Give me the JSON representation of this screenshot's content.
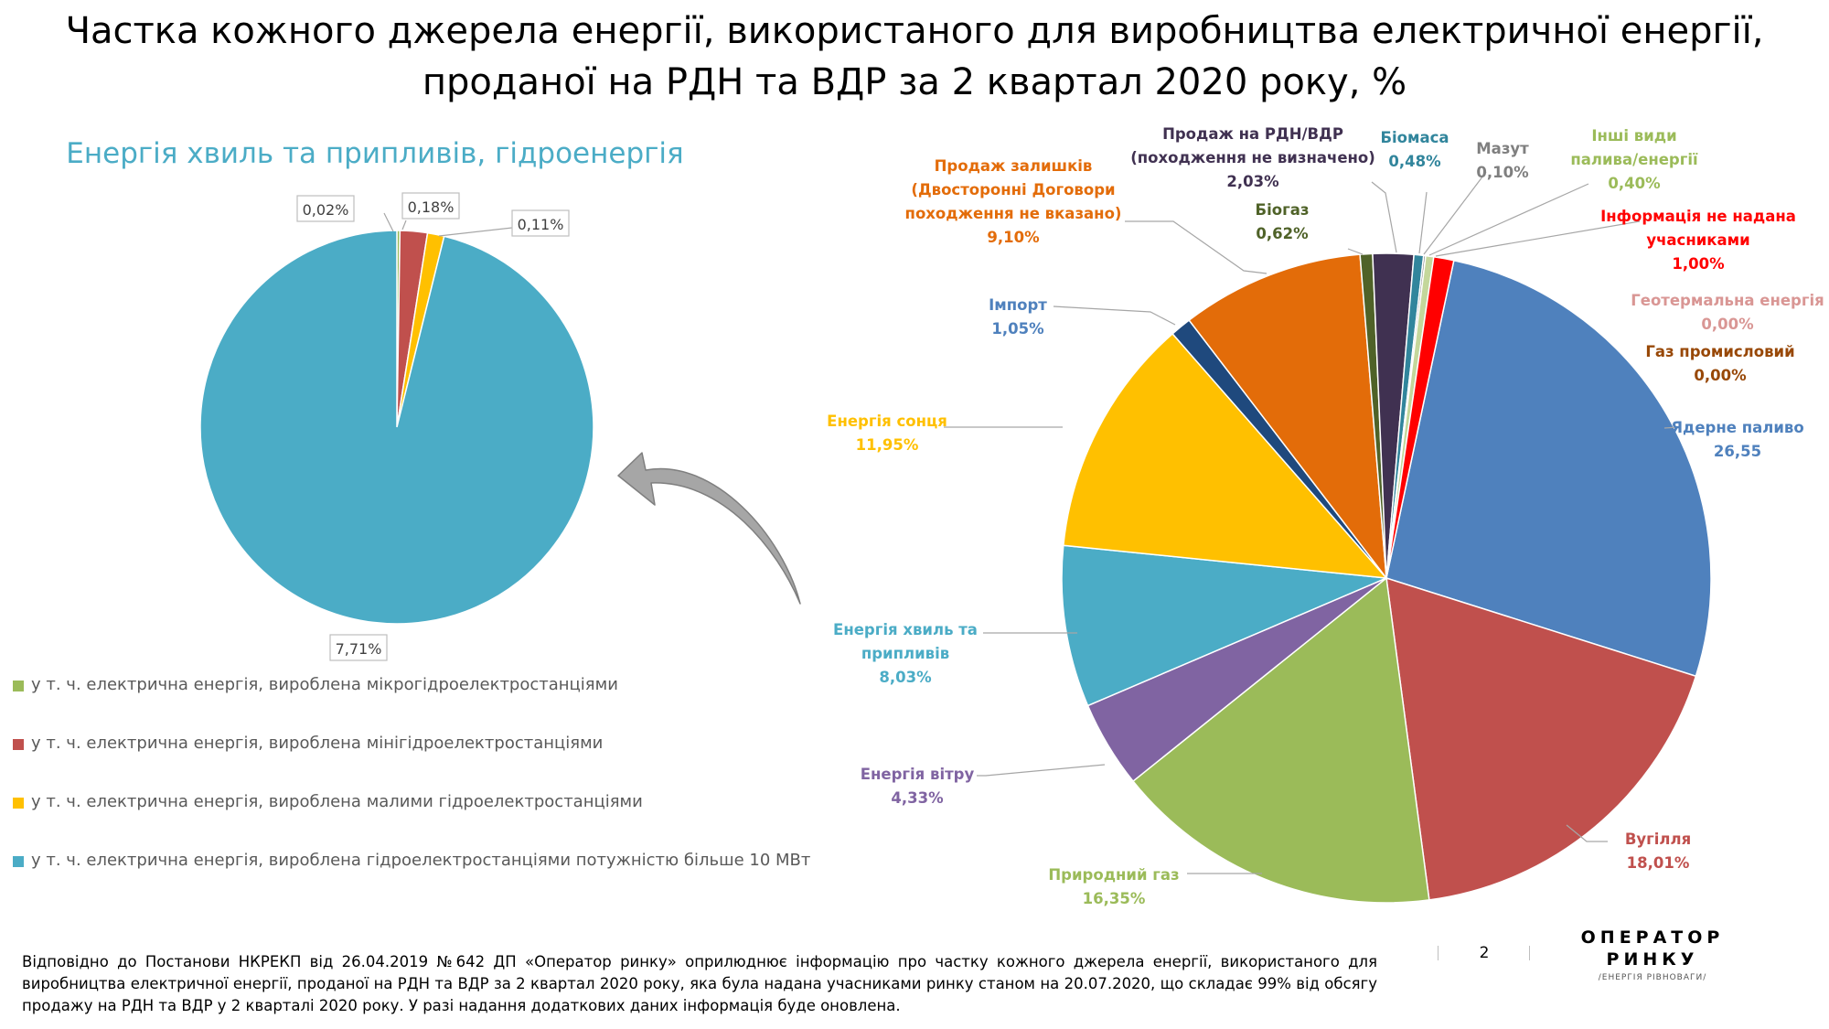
{
  "header": {
    "title_line1": "Частка кожного джерела енергії, використаного для виробництва електричної енергії,",
    "title_line2": "проданої на РДН та ВДР за 2 квартал 2020 року, %"
  },
  "chart_data": [
    {
      "type": "pie",
      "title": "Енергія хвиль та припливів, гідроенергія",
      "slices": [
        {
          "label": "у т. ч. електрична енергія, вироблена мікрогідроелектростанціями",
          "value": 0.02,
          "display": "0,02%",
          "color": "#9BBB59"
        },
        {
          "label": "у т. ч. електрична енергія, вироблена мінігідроелектростанціями",
          "value": 0.18,
          "display": "0,18%",
          "color": "#C0504D"
        },
        {
          "label": "у т. ч. електрична енергія, вироблена малими гідроелектростанціями",
          "value": 0.11,
          "display": "0,11%",
          "color": "#FFC000"
        },
        {
          "label": "у т. ч. електрична енергія, вироблена гідроелектростанціями потужністю більше 10 МВт",
          "value": 7.71,
          "display": "7,71%",
          "color": "#4BACC6"
        }
      ],
      "legend_position": "bottom-left"
    },
    {
      "type": "pie",
      "title": "",
      "slices": [
        {
          "label": "Ядерне паливо",
          "value": 26.55,
          "display": "26,55",
          "color": "#4F81BD"
        },
        {
          "label": "Вугілля",
          "value": 18.01,
          "display": "18,01%",
          "color": "#C0504D"
        },
        {
          "label": "Природний газ",
          "value": 16.35,
          "display": "16,35%",
          "color": "#9BBB59"
        },
        {
          "label": "Енергія вітру",
          "value": 4.33,
          "display": "4,33%",
          "color": "#8064A2"
        },
        {
          "label": "Енергія хвиль та припливів",
          "value": 8.03,
          "display": "8,03%",
          "color": "#4BACC6"
        },
        {
          "label": "Енергія сонця",
          "value": 11.95,
          "display": "11,95%",
          "color": "#FFC000"
        },
        {
          "label": "Імпорт",
          "value": 1.05,
          "display": "1,05%",
          "color": "#1F497D"
        },
        {
          "label": "Продаж залишків (Двосторонні Договори походження не вказано)",
          "value": 9.1,
          "display": "9,10%",
          "color": "#E36C09"
        },
        {
          "label": "Біогаз",
          "value": 0.62,
          "display": "0,62%",
          "color": "#4F6228"
        },
        {
          "label": "Продаж на РДН/ВДР (походження не визначено)",
          "value": 2.03,
          "display": "2,03%",
          "color": "#403151"
        },
        {
          "label": "Біомаса",
          "value": 0.48,
          "display": "0,48%",
          "color": "#31859C"
        },
        {
          "label": "Мазут",
          "value": 0.1,
          "display": "0,10%",
          "color": "#7F7F7F"
        },
        {
          "label": "Інші види палива/енергії",
          "value": 0.4,
          "display": "0,40%",
          "color": "#C4D79B"
        },
        {
          "label": "Інформація не надана учасниками",
          "value": 1.0,
          "display": "1,00%",
          "color": "#FF0000"
        },
        {
          "label": "Геотермальна енергія",
          "value": 0.0,
          "display": "0,00%",
          "color": "#D99694"
        },
        {
          "label": "Газ промисловий",
          "value": 0.0,
          "display": "0,00%",
          "color": "#C0504D"
        }
      ]
    }
  ],
  "labels": {
    "nuclear": [
      "Ядерне паливо",
      "26,55"
    ],
    "coal": [
      "Вугілля",
      "18,01%"
    ],
    "gas": [
      "Природний газ",
      "16,35%"
    ],
    "wind": [
      "Енергія вітру",
      "4,33%"
    ],
    "wave": [
      "Енергія хвиль та",
      "припливів",
      "8,03%"
    ],
    "solar": [
      "Енергія сонця",
      "11,95%"
    ],
    "import": [
      "Імпорт",
      "1,05%"
    ],
    "residual": [
      "Продаж залишків",
      "(Двосторонні Договори",
      "походження не вказано)",
      "9,10%"
    ],
    "biogas": [
      "Біогаз",
      "0,62%"
    ],
    "undetermined": [
      "Продаж на РДН/ВДР",
      "(походження не визначено)",
      "2,03%"
    ],
    "biomass": [
      "Біомаса",
      "0,48%"
    ],
    "fuel_oil": [
      "Мазут",
      "0,10%"
    ],
    "other": [
      "Інші види",
      "палива/енергії",
      "0,40%"
    ],
    "not_provided": [
      "Інформація не надана",
      "учасниками",
      "1,00%"
    ],
    "geothermal": [
      "Геотермальна енергія",
      "0,00%"
    ],
    "industrial_gas": [
      "Газ промисловий",
      "0,00%"
    ]
  },
  "footer": {
    "text": "Відповідно до Постанови НКРЕКП від 26.04.2019 №642 ДП «Оператор ринку» оприлюднює інформацію про частку кожного джерела енергії, використаного для виробництва електричної енергії, проданої на РДН та ВДР за 2 квартал 2020 року, яка була надана учасниками ринку станом на 20.07.2020, що складає 99% від обсягу продажу на РДН та ВДР у 2 кварталі 2020 року. У разі надання додаткових даних інформація буде оновлена.",
    "page_number": "2"
  },
  "brand": {
    "line1": "ОПЕРАТОР",
    "line2": "РИНКУ",
    "tagline": "/ЕНЕРГІЯ РІВНОВАГИ/"
  }
}
